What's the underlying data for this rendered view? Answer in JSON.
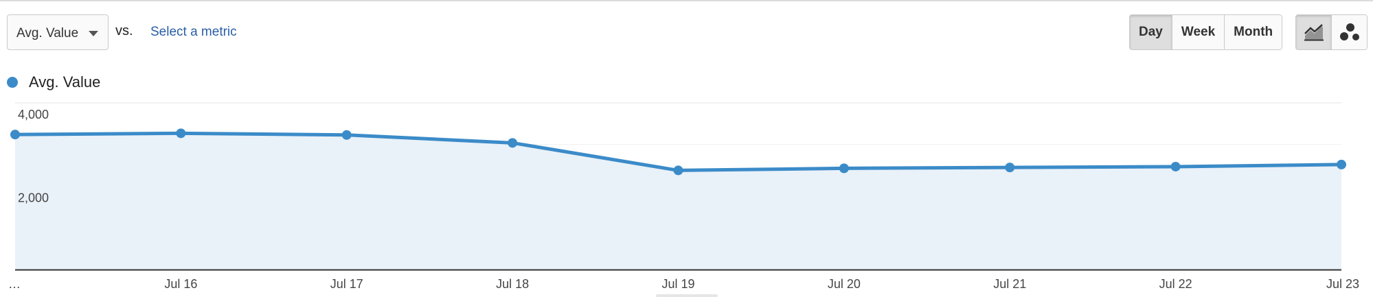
{
  "toolbar": {
    "metric_selected": "Avg. Value",
    "vs_label": "vs.",
    "compare_link": "Select a metric",
    "periods": [
      "Day",
      "Week",
      "Month"
    ],
    "active_period": "Day",
    "chart_types": [
      {
        "icon": "line-chart-icon",
        "active": true
      },
      {
        "icon": "motion-chart-icon",
        "active": false
      }
    ]
  },
  "legend": {
    "label": "Avg. Value",
    "color": "#3b8bc8"
  },
  "chart_data": {
    "type": "area",
    "categories": [
      "…",
      "Jul 16",
      "Jul 17",
      "Jul 18",
      "Jul 19",
      "Jul 20",
      "Jul 21",
      "Jul 22",
      "Jul 23"
    ],
    "series": [
      {
        "name": "Avg. Value",
        "values": [
          3240,
          3270,
          3230,
          3040,
          2380,
          2430,
          2450,
          2470,
          2520
        ]
      }
    ],
    "y_ticks": [
      {
        "value": 4000,
        "label": "4,000"
      },
      {
        "value": 2000,
        "label": "2,000"
      }
    ],
    "ylim": [
      0,
      4000
    ],
    "grid": true,
    "line_color": "#3b8bc8",
    "fill_color": "#e9f1f9"
  }
}
